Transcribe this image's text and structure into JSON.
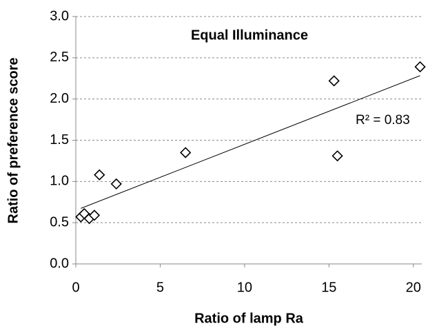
{
  "chart_data": {
    "type": "scatter",
    "title": "Equal Illuminance",
    "xlabel": "Ratio of lamp Ra",
    "ylabel": "Ratio of preference score",
    "annotation": "R² = 0.83",
    "x": [
      0.3,
      0.5,
      0.8,
      1.1,
      1.4,
      2.4,
      6.5,
      15.3,
      15.5,
      20.4
    ],
    "values": [
      0.57,
      0.61,
      0.55,
      0.59,
      1.08,
      0.97,
      1.35,
      2.22,
      1.31,
      2.39
    ],
    "color": "#000000",
    "trendline": true,
    "grid": true,
    "xlim": [
      0,
      20.5
    ],
    "xticks": [
      0,
      5,
      10,
      15,
      20
    ],
    "ylim": [
      0,
      3
    ],
    "yticks": [
      {
        "value": 0,
        "label": "0.0"
      },
      {
        "value": 0.5,
        "label": "0.5"
      },
      {
        "value": 1,
        "label": "1.0"
      },
      {
        "value": 1.5,
        "label": "1.5"
      },
      {
        "value": 2,
        "label": "2.0"
      },
      {
        "value": 2.5,
        "label": "2.5"
      },
      {
        "value": 3,
        "label": "3.0"
      }
    ]
  }
}
